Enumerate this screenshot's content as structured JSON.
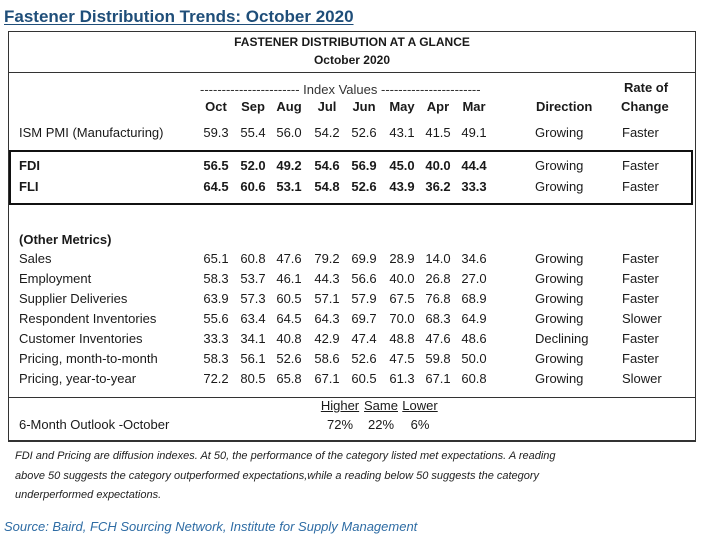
{
  "title": "Fastener Distribution Trends: October 2020",
  "header": {
    "line1": "FASTENER DISTRIBUTION AT A GLANCE",
    "line2": "October 2020"
  },
  "index_label": "----------------------- Index Values -----------------------",
  "columns": [
    "Oct",
    "Sep",
    "Aug",
    "Jul",
    "Jun",
    "May",
    "Apr",
    "Mar"
  ],
  "direction_header": "Direction",
  "rate_header_1": "Rate of",
  "rate_header_2": "Change",
  "ism": {
    "name": "ISM PMI (Manufacturing)",
    "values": [
      "59.3",
      "55.4",
      "56.0",
      "54.2",
      "52.6",
      "43.1",
      "41.5",
      "49.1"
    ],
    "direction": "Growing",
    "rate": "Faster"
  },
  "fdi": {
    "name": "FDI",
    "values": [
      "56.5",
      "52.0",
      "49.2",
      "54.6",
      "56.9",
      "45.0",
      "40.0",
      "44.4"
    ],
    "direction": "Growing",
    "rate": "Faster"
  },
  "fli": {
    "name": "FLI",
    "values": [
      "64.5",
      "60.6",
      "53.1",
      "54.8",
      "52.6",
      "43.9",
      "36.2",
      "33.3"
    ],
    "direction": "Growing",
    "rate": "Faster"
  },
  "other_title": "(Other Metrics)",
  "other": [
    {
      "name": "Sales",
      "values": [
        "65.1",
        "60.8",
        "47.6",
        "79.2",
        "69.9",
        "28.9",
        "14.0",
        "34.6"
      ],
      "direction": "Growing",
      "rate": "Faster"
    },
    {
      "name": "Employment",
      "values": [
        "58.3",
        "53.7",
        "46.1",
        "44.3",
        "56.6",
        "40.0",
        "26.8",
        "27.0"
      ],
      "direction": "Growing",
      "rate": "Faster"
    },
    {
      "name": "Supplier Deliveries",
      "values": [
        "63.9",
        "57.3",
        "60.5",
        "57.1",
        "57.9",
        "67.5",
        "76.8",
        "68.9"
      ],
      "direction": "Growing",
      "rate": "Faster"
    },
    {
      "name": "Respondent Inventories",
      "values": [
        "55.6",
        "63.4",
        "64.5",
        "64.3",
        "69.7",
        "70.0",
        "68.3",
        "64.9"
      ],
      "direction": "Growing",
      "rate": "Slower"
    },
    {
      "name": "Customer Inventories",
      "values": [
        "33.3",
        "34.1",
        "40.8",
        "42.9",
        "47.4",
        "48.8",
        "47.6",
        "48.6"
      ],
      "direction": "Declining",
      "rate": "Faster"
    },
    {
      "name": "Pricing, month-to-month",
      "values": [
        "58.3",
        "56.1",
        "52.6",
        "58.6",
        "52.6",
        "47.5",
        "59.8",
        "50.0"
      ],
      "direction": "Growing",
      "rate": "Faster"
    },
    {
      "name": "Pricing, year-to-year",
      "values": [
        "72.2",
        "80.5",
        "65.8",
        "67.1",
        "60.5",
        "61.3",
        "67.1",
        "60.8"
      ],
      "direction": "Growing",
      "rate": "Slower"
    }
  ],
  "outlook": {
    "name": "6-Month Outlook -October",
    "headers": [
      "Higher",
      "Same",
      "Lower"
    ],
    "values": [
      "72%",
      "22%",
      "6%"
    ]
  },
  "note": {
    "line1": "FDI and Pricing are diffusion indexes.  At 50, the performance of the category listed met expectations. A reading",
    "line2": "above 50 suggests the category outperformed expectations,while a reading below 50 suggests the category",
    "line3": "underperformed expectations."
  },
  "source": "Source: Baird, FCH Sourcing Network, Institute for Supply Management",
  "colors": {
    "title": "#1f4e79",
    "source": "#2e6ca4"
  }
}
